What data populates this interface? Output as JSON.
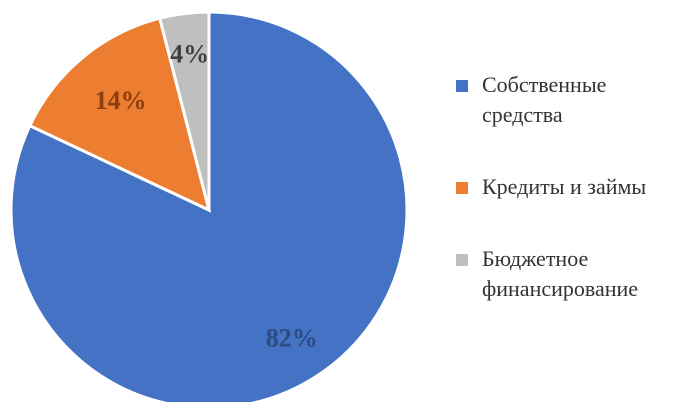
{
  "chart_data": {
    "type": "pie",
    "title": "",
    "categories": [
      "Собственные средства",
      "Кредиты и займы",
      "Бюджетное финансирование"
    ],
    "values": [
      82,
      14,
      4
    ],
    "data_labels": [
      "82%",
      "14%",
      "4%"
    ],
    "colors": [
      "#4472c4",
      "#ed7d31",
      "#bfbfbf"
    ],
    "label_colors": [
      "#2f4a80",
      "#8a3e0f",
      "#404040"
    ],
    "start_angle_deg": 0,
    "direction": "clockwise",
    "legend_position": "right"
  },
  "legend": {
    "items": [
      {
        "label": "Собственные средства",
        "color": "#4472c4"
      },
      {
        "label": "Кредиты и займы",
        "color": "#ed7d31"
      },
      {
        "label": "Бюджетное финансирование",
        "color": "#bfbfbf"
      }
    ]
  }
}
